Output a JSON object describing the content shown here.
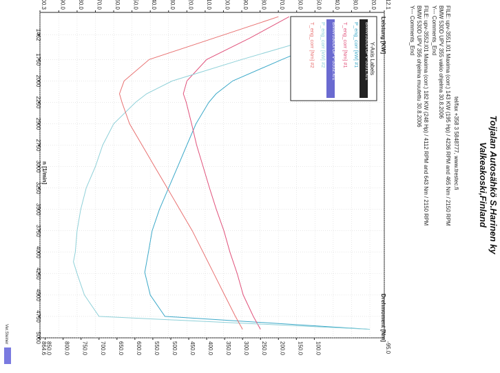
{
  "header": {
    "title_line1": "Toijalan Autosähkö S.Harinen ky",
    "title_line2": "Valkeakoski,Finland",
    "contact": "tel/fax +358 3 5848777, www.trestec.fi",
    "file1": "FILE: upv-3551.l01  Maxima (corr.)  143 KW (195 Hp) / 4236 RPM  and  465 Nm / 2150 RPM",
    "file1_desc": "BMW 530D UPV 355 vakio ohjelma 30.8.2006",
    "file1_comments": "Y--- Comments_End",
    "file2": "FILE: upv-3552.l01  Maxima (corr.)  182 KW (248 Hp) / 4112 RPM  and  643 Nm / 2150 RPM",
    "file2_desc": "BMW 530D UPV 356 ohjelma muutettu 30.8.2006",
    "file2_comments": "Y--- Comments_End"
  },
  "legend": {
    "title": "Y-Axis Labels",
    "items": [
      {
        "label": "BMW530D/UPV-3551.l01",
        "color": "#1a1a1a"
      },
      {
        "label": "P_eng_corr [kW] #1",
        "color": "#3aa8c8"
      },
      {
        "label": "T_eng_corr [Nm] #1",
        "color": "#e0507a"
      },
      {
        "label": "BMW530D/UPV-3552.l01",
        "color": "#6a6ad0"
      },
      {
        "label": "P_eng_corr [kW] #2",
        "color": "#8ed0d8"
      },
      {
        "label": "T_eng_corr [Nm] #2",
        "color": "#e87070"
      }
    ]
  },
  "branding": "Ver.Steiner",
  "chart_data": {
    "type": "line",
    "xlabel": "n  [1/min]",
    "ylabel_left": "Leistung [KW]",
    "ylabel_right": "Drehmoment [Nm]",
    "xlim": [
      1200,
      5000
    ],
    "ylim_left": [
      12.1,
      200.3
    ],
    "ylim_right": [
      -95.0,
      864.6
    ],
    "x_ticks": [
      "1462",
      "1750",
      "2000",
      "2250",
      "2500",
      "2750",
      "3000",
      "3250",
      "3500",
      "3750",
      "4000",
      "4250",
      "4500",
      "4750",
      "5000"
    ],
    "y_ticks_left": [
      "200.3",
      "190.0",
      "180.0",
      "170.0",
      "160.0",
      "150.0",
      "140.0",
      "130.0",
      "120.0",
      "110.0",
      "100.0",
      "90.0",
      "80.0",
      "70.0",
      "60.0",
      "50.0",
      "40.0",
      "30.0",
      "20.0",
      "12.1"
    ],
    "y_ticks_right": [
      "864.6",
      "850.0",
      "800.0",
      "750.0",
      "700.0",
      "650.0",
      "600.0",
      "550.0",
      "500.0",
      "450.0",
      "400.0",
      "350.0",
      "300.0",
      "250.0",
      "200.0",
      "150.0",
      "100.0",
      "-95.0"
    ],
    "series": [
      {
        "name": "P_eng_corr [kW] #1",
        "axis": "left",
        "color": "#3aa8c8",
        "x": [
          1250,
          1500,
          1750,
          2000,
          2150,
          2250,
          2500,
          2750,
          3000,
          3250,
          3500,
          3750,
          4000,
          4236,
          4500,
          4750,
          4900
        ],
        "values": [
          22,
          40,
          68,
          95,
          104,
          108,
          115,
          120,
          125,
          130,
          135,
          139,
          141,
          143,
          140,
          132,
          20
        ]
      },
      {
        "name": "T_eng_corr [Nm] #1",
        "axis": "right",
        "color": "#e0507a",
        "x": [
          1250,
          1500,
          1750,
          2000,
          2150,
          2250,
          2500,
          2750,
          3000,
          3250,
          3500,
          3750,
          4000,
          4250,
          4500,
          4750,
          4900
        ],
        "values": [
          170,
          280,
          400,
          455,
          465,
          457,
          442,
          428,
          410,
          392,
          373,
          352,
          335,
          315,
          298,
          270,
          250
        ]
      },
      {
        "name": "P_eng_corr [kW] #2",
        "axis": "left",
        "color": "#8ed0d8",
        "x": [
          1250,
          1500,
          1750,
          2000,
          2150,
          2250,
          2500,
          2750,
          3000,
          3250,
          3500,
          3750,
          4000,
          4112,
          4250,
          4500,
          4750,
          4900
        ],
        "values": [
          25,
          50,
          90,
          128,
          142,
          148,
          160,
          166,
          170,
          175,
          178,
          180,
          181,
          182,
          180,
          176,
          168,
          20
        ]
      },
      {
        "name": "T_eng_corr [Nm] #2",
        "axis": "right",
        "color": "#e87070",
        "x": [
          1250,
          1500,
          1750,
          2000,
          2150,
          2250,
          2500,
          2750,
          3000,
          3250,
          3500,
          3750,
          4000,
          4250,
          4500,
          4750,
          4900
        ],
        "values": [
          200,
          380,
          560,
          630,
          643,
          636,
          615,
          580,
          545,
          510,
          475,
          440,
          410,
          380,
          350,
          320,
          300
        ]
      }
    ]
  }
}
